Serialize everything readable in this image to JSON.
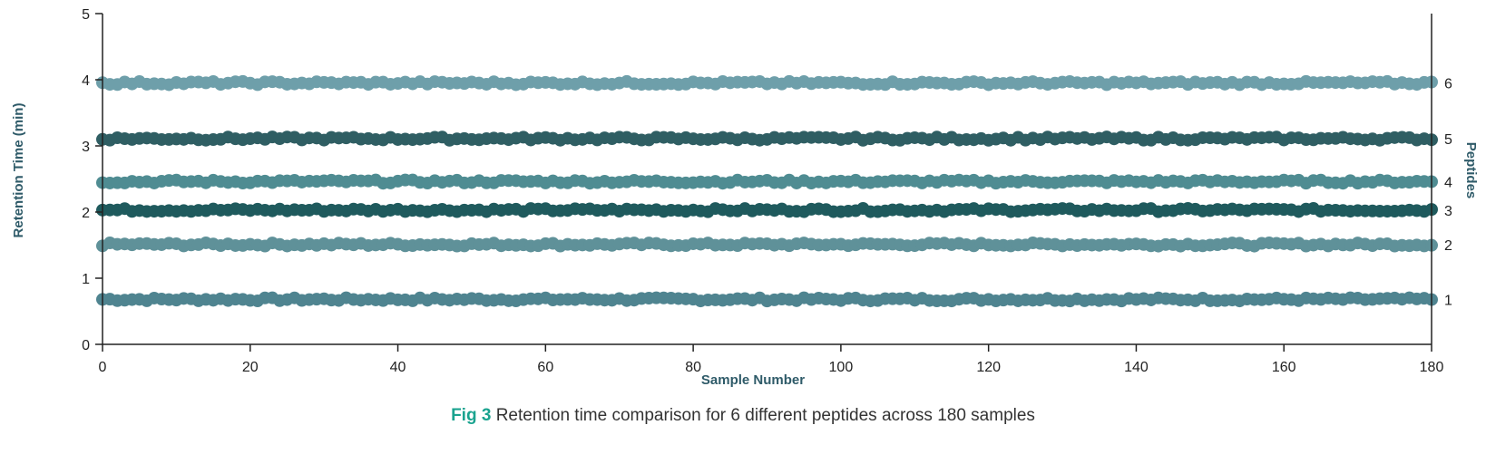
{
  "caption": {
    "figure_label": "Fig 3",
    "text": "Retention time comparison for 6 different peptides across 180 samples"
  },
  "chart_data": {
    "type": "scatter",
    "title": "",
    "xlabel": "Sample Number",
    "ylabel": "Retention Time (min)",
    "right_label": "Peptides",
    "xlim": [
      0,
      180
    ],
    "ylim": [
      0,
      5
    ],
    "x_ticks": [
      0,
      20,
      40,
      60,
      80,
      100,
      120,
      140,
      160,
      180
    ],
    "y_ticks": [
      0,
      1,
      2,
      3,
      4,
      5
    ],
    "grid": false,
    "n_samples": 180,
    "series": [
      {
        "name": "1",
        "baseline": 0.68,
        "color": "#4f8490"
      },
      {
        "name": "2",
        "baseline": 1.51,
        "color": "#5f9199"
      },
      {
        "name": "3",
        "baseline": 2.03,
        "color": "#1f5a5d"
      },
      {
        "name": "4",
        "baseline": 2.46,
        "color": "#4f8c92"
      },
      {
        "name": "5",
        "baseline": 3.11,
        "color": "#2f5e63"
      },
      {
        "name": "6",
        "baseline": 3.95,
        "color": "#6e9faa"
      }
    ]
  }
}
